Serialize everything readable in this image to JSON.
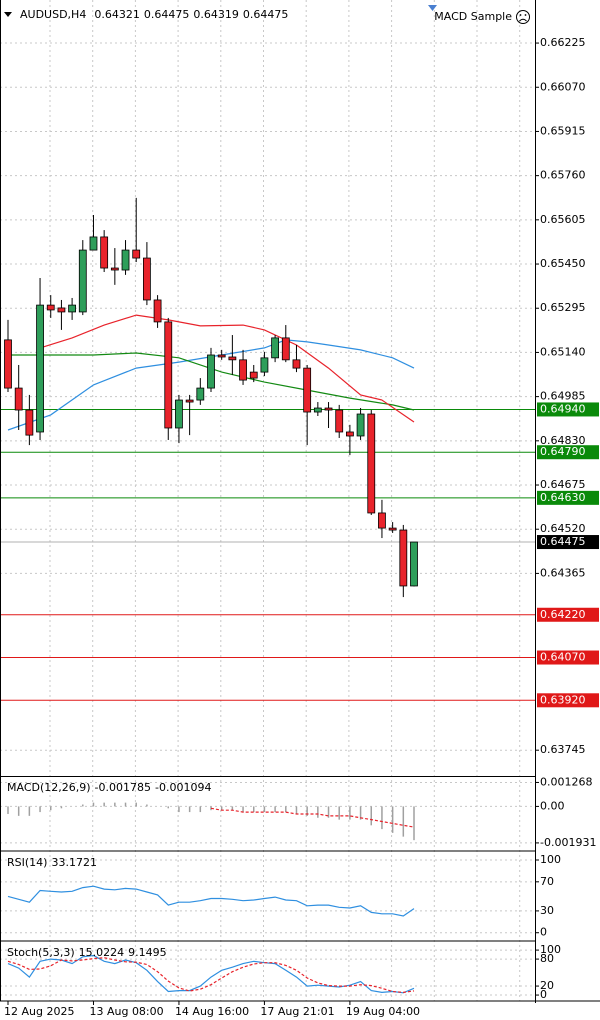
{
  "header": {
    "expert": "MACD Sample"
  },
  "chart_data": [
    {
      "type": "candlestick",
      "title": "AUDUSD,H4",
      "up_color": "#2e9e5a",
      "down_color": "#e8232b",
      "open": [
        0.65184,
        0.65015,
        0.64938,
        0.64861,
        0.65306,
        0.65296,
        0.65282,
        0.65282,
        0.65499,
        0.65545,
        0.65436,
        0.65429,
        0.65499,
        0.65471,
        0.65324,
        0.65247,
        0.64875,
        0.64973,
        0.64973,
        0.65015,
        0.65131,
        0.65124,
        0.65114,
        0.65071,
        0.65071,
        0.65121,
        0.65191,
        0.65114,
        0.65085,
        0.64931,
        0.64945,
        0.64938,
        0.64861,
        0.64847,
        0.64924,
        0.64577,
        0.64524,
        0.64517,
        0.64321
      ],
      "high": [
        0.65254,
        0.65096,
        0.64991,
        0.65401,
        0.65341,
        0.65324,
        0.65331,
        0.65534,
        0.65622,
        0.65569,
        0.65506,
        0.65534,
        0.65682,
        0.65527,
        0.65341,
        0.65261,
        0.64991,
        0.64991,
        0.6505,
        0.65156,
        0.65149,
        0.65201,
        0.65149,
        0.65096,
        0.65142,
        0.65201,
        0.65236,
        0.65166,
        0.65096,
        0.64966,
        0.64966,
        0.64956,
        0.64886,
        0.64945,
        0.64938,
        0.64623,
        0.64545,
        0.64535,
        0.64475
      ],
      "low": [
        0.65001,
        0.64868,
        0.64815,
        0.64833,
        0.65261,
        0.65219,
        0.65254,
        0.65271,
        0.65499,
        0.65422,
        0.65377,
        0.65412,
        0.65457,
        0.65306,
        0.65226,
        0.64833,
        0.64822,
        0.6485,
        0.64956,
        0.65001,
        0.65114,
        0.65061,
        0.65026,
        0.65036,
        0.65057,
        0.65106,
        0.65106,
        0.65071,
        0.64815,
        0.64917,
        0.64875,
        0.6484,
        0.6478,
        0.64833,
        0.6457,
        0.64489,
        0.64507,
        0.64282,
        0.64319
      ],
      "close": [
        0.65015,
        0.64938,
        0.6485,
        0.65306,
        0.65289,
        0.65282,
        0.65306,
        0.65499,
        0.65545,
        0.65436,
        0.65429,
        0.65499,
        0.65471,
        0.65324,
        0.65247,
        0.64875,
        0.64973,
        0.64966,
        0.65015,
        0.65131,
        0.65124,
        0.65114,
        0.65043,
        0.6505,
        0.65121,
        0.65191,
        0.65114,
        0.65085,
        0.64931,
        0.64945,
        0.64938,
        0.64861,
        0.64847,
        0.64924,
        0.64577,
        0.64524,
        0.64517,
        0.64321,
        0.64475
      ],
      "series": [
        {
          "color": "#2f8fe0",
          "x": [
            0,
            4,
            8,
            12,
            16,
            20,
            24,
            26,
            28,
            30,
            33,
            36,
            38
          ],
          "values": [
            0.64868,
            0.64921,
            0.65026,
            0.65085,
            0.65106,
            0.65131,
            0.65156,
            0.65184,
            0.65177,
            0.65166,
            0.65149,
            0.65121,
            0.65085
          ]
        },
        {
          "color": "#138a13",
          "x": [
            0,
            8,
            12,
            16,
            20,
            24,
            28,
            32,
            36,
            38
          ],
          "values": [
            0.65131,
            0.65131,
            0.65138,
            0.65121,
            0.65071,
            0.65036,
            0.65008,
            0.6498,
            0.64956,
            0.64938
          ]
        },
        {
          "color": "#e8232b",
          "x": [
            3,
            6,
            9,
            12,
            15,
            18,
            22,
            24,
            27,
            30,
            33,
            35,
            38
          ],
          "values": [
            0.65156,
            0.65191,
            0.65236,
            0.65271,
            0.65254,
            0.65233,
            0.65236,
            0.65219,
            0.65166,
            0.65085,
            0.64991,
            0.64973,
            0.64896
          ]
        }
      ],
      "levels": [
        {
          "value": 0.6494,
          "label": "0.64940",
          "color": "#0a8a0a"
        },
        {
          "value": 0.6479,
          "label": "0.64790",
          "color": "#0a8a0a"
        },
        {
          "value": 0.6463,
          "label": "0.64630",
          "color": "#0a8a0a"
        },
        {
          "value": 0.6422,
          "label": "0.64220",
          "color": "#e01818"
        },
        {
          "value": 0.6407,
          "label": "0.64070",
          "color": "#e01818"
        },
        {
          "value": 0.6392,
          "label": "0.63920",
          "color": "#e01818"
        }
      ],
      "current": {
        "value": 0.64475,
        "label": "0.64475",
        "color": "#000000"
      },
      "ylim": [
        0.63658,
        0.66376
      ],
      "yticks": [
        0.66225,
        {
          "value": 0.6607,
          "label": "0.66070"
        },
        0.65915,
        {
          "value": 0.6576,
          "label": "0.65760"
        },
        0.65605,
        {
          "value": 0.6545,
          "label": "0.65450"
        },
        0.65295,
        {
          "value": 0.6514,
          "label": "0.65140"
        },
        0.64985,
        {
          "value": 0.6483,
          "label": "0.64830"
        },
        0.64675,
        {
          "value": 0.6452,
          "label": "0.64520"
        },
        0.64365,
        0.63745
      ],
      "x_labels": [
        "12 Aug 2025",
        "13 Aug 08:00",
        "14 Aug 16:00",
        "17 Aug 21:01",
        "19 Aug 04:00"
      ],
      "grid": true
    },
    {
      "type": "macd",
      "title": "MACD(12,26,9)",
      "series": [
        {
          "color": "#a0a0a0",
          "values": [
            -0.0004,
            -0.0005,
            -0.0005,
            -0.0003,
            -0.0002,
            -0.0001,
            0.0,
            0.0001,
            0.0002,
            0.0002,
            0.0002,
            0.0002,
            0.0002,
            0.0001,
            0.0,
            -0.0001,
            -0.0003,
            -0.0003,
            -0.0003,
            -0.0002,
            -0.0002,
            -0.0002,
            -0.0003,
            -0.0003,
            -0.0003,
            -0.0003,
            -0.0003,
            -0.0004,
            -0.0005,
            -0.0006,
            -0.0006,
            -0.0007,
            -0.0007,
            -0.0007,
            -0.001,
            -0.0012,
            -0.0014,
            -0.0016,
            -0.001785
          ]
        },
        {
          "color": "#e8232b",
          "values": [
            null,
            null,
            null,
            null,
            null,
            null,
            null,
            null,
            null,
            null,
            null,
            null,
            null,
            null,
            null,
            null,
            null,
            null,
            null,
            -0.0001,
            -0.0002,
            -0.0002,
            -0.0003,
            -0.0003,
            -0.0003,
            -0.0003,
            -0.0003,
            -0.0004,
            -0.0004,
            -0.0004,
            -0.0005,
            -0.0005,
            -0.0005,
            -0.0006,
            -0.0007,
            -0.0008,
            -0.0009,
            -0.001,
            -0.001094
          ]
        }
      ],
      "ylim": [
        -0.002306,
        0.001556
      ],
      "yticks": [
        0.001268,
        {
          "value": 0,
          "label": "0.00"
        },
        -0.001931
      ]
    },
    {
      "type": "line",
      "title": "RSI(14)",
      "series": [
        {
          "color": "#2f8fe0",
          "values": [
            50,
            46,
            42,
            58,
            57,
            56,
            57,
            62,
            64,
            60,
            59,
            61,
            60,
            56,
            52,
            38,
            42,
            42,
            44,
            47,
            47,
            46,
            44,
            45,
            47,
            49,
            45,
            44,
            37,
            38,
            38,
            35,
            34,
            37,
            28,
            26,
            26,
            23,
            33.1721
          ]
        }
      ],
      "ylim": [
        -10,
        111
      ],
      "yticks": [
        100,
        70,
        30,
        0
      ]
    },
    {
      "type": "line",
      "title": "Stoch(5,3,3)",
      "series": [
        {
          "color": "#2f8fe0",
          "values": [
            70,
            60,
            40,
            75,
            80,
            78,
            70,
            85,
            88,
            75,
            70,
            78,
            72,
            55,
            30,
            8,
            10,
            10,
            20,
            40,
            55,
            62,
            70,
            75,
            72,
            70,
            55,
            40,
            20,
            22,
            20,
            18,
            22,
            30,
            10,
            6,
            8,
            5,
            15.0224
          ]
        },
        {
          "color": "#e8232b",
          "dash": true,
          "values": [
            75,
            68,
            57,
            58,
            65,
            78,
            76,
            78,
            81,
            83,
            78,
            74,
            73,
            68,
            52,
            31,
            16,
            9,
            13,
            23,
            38,
            52,
            62,
            69,
            72,
            72,
            66,
            55,
            38,
            27,
            21,
            20,
            20,
            23,
            21,
            15,
            8,
            6,
            9.1495
          ]
        }
      ],
      "ylim": [
        -11,
        118
      ],
      "yticks": [
        100,
        80,
        20,
        0
      ]
    }
  ]
}
